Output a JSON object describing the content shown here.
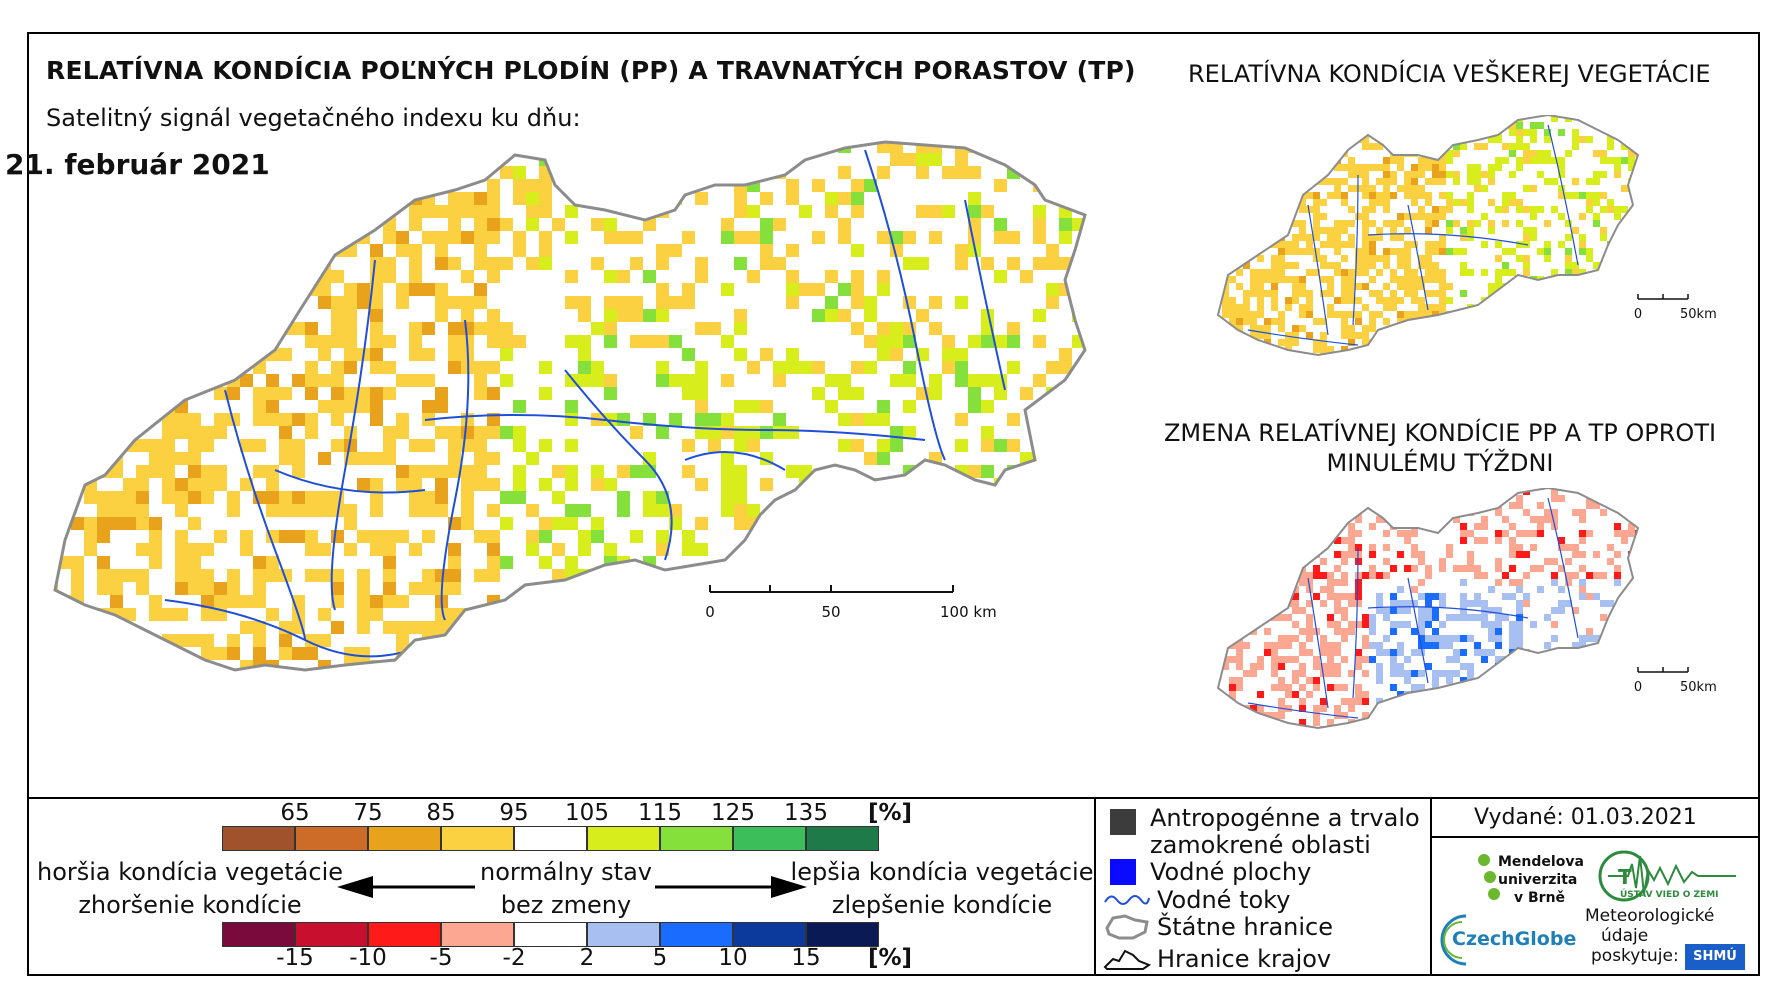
{
  "titles": {
    "main": "RELATÍVNA KONDÍCIA POĽNÝCH PLODÍN (PP) A TRAVNATÝCH PORASTOV (TP)",
    "subtitle": "Satelitný signál vegetačného indexu ku dňu:",
    "date": "21. február 2021",
    "right_top": "RELATÍVNA KONDÍCIA VEŠKEREJ VEGETÁCIE",
    "right_bottom": "ZMENA RELATÍVNEJ KONDÍCIE PP A TP OPROTI MINULÉMU TÝŽDNI"
  },
  "scalebars": {
    "main": {
      "ticks": [
        "0",
        "50",
        "100 km"
      ]
    },
    "small_top": {
      "ticks": [
        "0",
        "50km"
      ]
    },
    "small_bottom": {
      "ticks": [
        "0",
        "50km"
      ]
    }
  },
  "colorbar_condition": {
    "ticks": [
      "65",
      "75",
      "85",
      "95",
      "105",
      "115",
      "125",
      "135"
    ],
    "unit": "[%]",
    "colors": [
      "#a0522d",
      "#cd6c28",
      "#e8a21c",
      "#fbd142",
      "#ffffff",
      "#d8ee1c",
      "#86e03c",
      "#3cbf5a",
      "#1f7a4a"
    ]
  },
  "colorbar_change": {
    "ticks": [
      "-15",
      "-10",
      "-5",
      "-2",
      "2",
      "5",
      "10",
      "15"
    ],
    "unit": "[%]",
    "colors": [
      "#7a0a3c",
      "#c8102e",
      "#ff1a1a",
      "#fba792",
      "#ffffff",
      "#a8bff2",
      "#1a6cff",
      "#0c3a9c",
      "#0a1a55"
    ]
  },
  "legend_labels": {
    "worse_condition": "horšia kondícia vegetácie",
    "worse_change": "zhoršenie kondície",
    "normal": "normálny stav",
    "no_change": "bez zmeny",
    "better_condition": "lepšia kondícia vegetácie",
    "better_change": "zlepšenie kondície"
  },
  "map_legend": [
    {
      "icon": "anthropogenic-area-icon",
      "label_lines": [
        "Antropogénne a trvalo",
        "zamokrené oblasti"
      ],
      "color": "#3c3c3c"
    },
    {
      "icon": "water-body-icon",
      "label_lines": [
        "Vodné plochy"
      ],
      "color": "#0a0aff"
    },
    {
      "icon": "river-icon",
      "label_lines": [
        "Vodné toky"
      ],
      "color": "#1f4fd8"
    },
    {
      "icon": "state-border-icon",
      "label_lines": [
        "Štátne hranice"
      ],
      "color": "#9a9a9a"
    },
    {
      "icon": "region-border-icon",
      "label_lines": [
        "Hranice krajov"
      ],
      "color": "#111111"
    }
  ],
  "issued": "Vydané: 01.03.2021",
  "logos": {
    "mendel": [
      "Mendelova",
      "univerzita",
      "v Brně"
    ],
    "czechglobe": "CzechGlobe",
    "uvoz": "ÚSTAV VIED O ZEMI",
    "meteo": [
      "Meteorologické",
      "údaje",
      "poskytuje:"
    ],
    "shmu": "SHMÚ"
  }
}
